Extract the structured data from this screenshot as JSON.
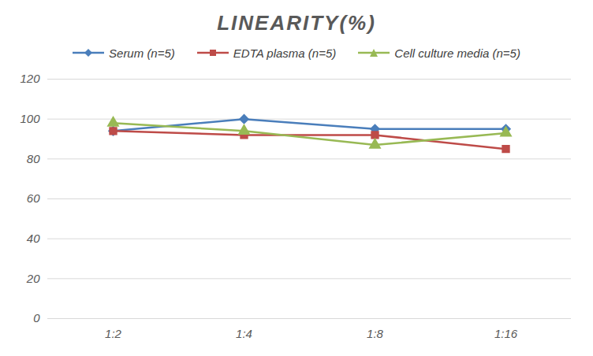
{
  "chart_data": {
    "type": "line",
    "title": "LINEARITY(%)",
    "categories": [
      "1:2",
      "1:4",
      "1:8",
      "1:16"
    ],
    "series": [
      {
        "name": "Serum (n=5)",
        "color": "#4a7ebb",
        "marker": "diamond",
        "values": [
          94,
          100,
          95,
          95
        ]
      },
      {
        "name": "EDTA plasma (n=5)",
        "color": "#be4b48",
        "marker": "square",
        "values": [
          94,
          92,
          92,
          85
        ]
      },
      {
        "name": "Cell culture media (n=5)",
        "color": "#98b954",
        "marker": "triangle",
        "values": [
          98,
          94,
          87,
          93
        ]
      }
    ],
    "ylim": [
      0,
      120
    ],
    "yticks": [
      0,
      20,
      40,
      60,
      80,
      100,
      120
    ],
    "grid": true,
    "legend": "top"
  }
}
